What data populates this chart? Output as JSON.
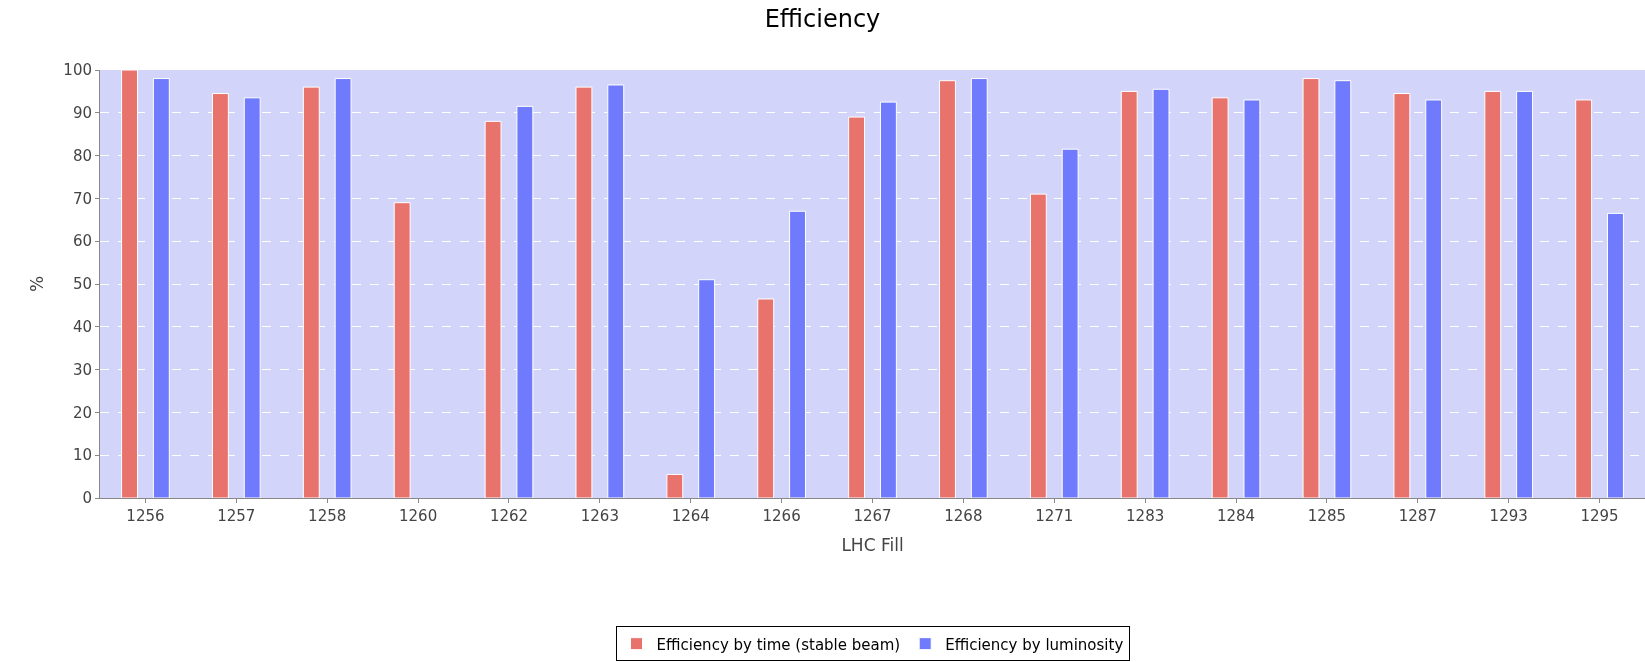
{
  "chart_data": {
    "type": "bar",
    "title": "Efficiency",
    "xlabel": "LHC Fill",
    "ylabel": "%",
    "categories": [
      "1256",
      "1257",
      "1258",
      "1260",
      "1262",
      "1263",
      "1264",
      "1266",
      "1267",
      "1268",
      "1271",
      "1283",
      "1284",
      "1285",
      "1287",
      "1293",
      "1295"
    ],
    "series": [
      {
        "name": "Efficiency by time (stable beam)",
        "color": "#e8736c",
        "values": [
          100,
          94.5,
          96,
          69,
          88,
          96,
          5.5,
          46.5,
          89,
          97.5,
          71,
          95,
          93.5,
          98,
          94.5,
          95,
          93
        ]
      },
      {
        "name": "Efficiency by luminosity",
        "color": "#6f7bfc",
        "values": [
          98,
          93.5,
          98,
          null,
          91.5,
          96.5,
          51,
          67,
          92.5,
          98,
          81.5,
          95.5,
          93,
          97.5,
          93,
          95,
          66.5
        ]
      }
    ],
    "ylim": [
      0,
      100
    ],
    "yticks": [
      0,
      10,
      20,
      30,
      40,
      50,
      60,
      70,
      80,
      90,
      100
    ],
    "grid": "y",
    "legend": "bottom"
  }
}
